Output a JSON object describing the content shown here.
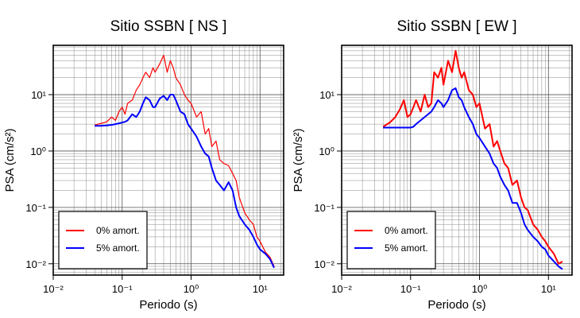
{
  "chart_data": [
    {
      "type": "line",
      "title": "Sitio SSBN [ NS ]",
      "xlabel": "Periodo (s)",
      "ylabel": "PSA (cm/s²)",
      "xscale": "log",
      "yscale": "log",
      "grid": true,
      "legend": "lower left",
      "xlim": [
        0.01,
        22
      ],
      "ylim": [
        0.0063,
        75
      ],
      "xticks": [
        {
          "value": 0.01,
          "label": "10⁻²"
        },
        {
          "value": 0.1,
          "label": "10⁻¹"
        },
        {
          "value": 1,
          "label": "10⁰"
        },
        {
          "value": 10,
          "label": "10¹"
        }
      ],
      "yticks": [
        {
          "value": 0.01,
          "label": "10⁻²"
        },
        {
          "value": 0.1,
          "label": "10⁻¹"
        },
        {
          "value": 1,
          "label": "10⁰"
        },
        {
          "value": 10,
          "label": "10¹"
        }
      ],
      "x": [
        0.04,
        0.05,
        0.06,
        0.07,
        0.08,
        0.09,
        0.1,
        0.11,
        0.12,
        0.14,
        0.16,
        0.18,
        0.2,
        0.22,
        0.25,
        0.28,
        0.3,
        0.35,
        0.4,
        0.45,
        0.5,
        0.55,
        0.6,
        0.7,
        0.8,
        0.9,
        1.0,
        1.2,
        1.4,
        1.6,
        1.8,
        2.0,
        2.3,
        2.6,
        3.0,
        3.5,
        4.0,
        4.5,
        5,
        6,
        7,
        8,
        9,
        10,
        12,
        14,
        16
      ],
      "series": [
        {
          "name": "0% amort.",
          "color": "#ff0000",
          "width": 1.2,
          "values": [
            2.9,
            3.1,
            3.3,
            4,
            3.5,
            5,
            6,
            4.5,
            7,
            8,
            12,
            15,
            20,
            25,
            20,
            30,
            25,
            35,
            50,
            25,
            40,
            30,
            20,
            15,
            10,
            8,
            7,
            4,
            5,
            2,
            2.5,
            1.2,
            1.5,
            0.7,
            0.6,
            0.55,
            0.4,
            0.3,
            0.15,
            0.08,
            0.06,
            0.05,
            0.03,
            0.025,
            0.016,
            0.013,
            0.009
          ]
        },
        {
          "name": "5% amort.",
          "color": "#0000ff",
          "width": 2,
          "values": [
            2.8,
            2.8,
            2.85,
            2.9,
            3,
            3.1,
            3.2,
            3.3,
            3.5,
            4.5,
            4,
            5,
            7,
            9,
            8,
            6,
            6,
            8.5,
            9.5,
            8,
            10,
            10,
            8,
            5,
            4.5,
            3,
            2.5,
            1.8,
            1.2,
            0.9,
            0.8,
            0.5,
            0.3,
            0.25,
            0.2,
            0.28,
            0.2,
            0.1,
            0.07,
            0.05,
            0.04,
            0.03,
            0.022,
            0.018,
            0.015,
            0.012,
            0.0085
          ]
        }
      ]
    },
    {
      "type": "line",
      "title": "Sitio SSBN [ EW ]",
      "xlabel": "Periodo (s)",
      "ylabel": "PSA (cm/s²)",
      "xscale": "log",
      "yscale": "log",
      "grid": true,
      "legend": "lower left",
      "xlim": [
        0.01,
        22
      ],
      "ylim": [
        0.0063,
        75
      ],
      "xticks": [
        {
          "value": 0.01,
          "label": "10⁻²"
        },
        {
          "value": 0.1,
          "label": "10⁻¹"
        },
        {
          "value": 1,
          "label": "10⁰"
        },
        {
          "value": 10,
          "label": "10¹"
        }
      ],
      "yticks": [
        {
          "value": 0.01,
          "label": "10⁻²"
        },
        {
          "value": 0.1,
          "label": "10⁻¹"
        },
        {
          "value": 1,
          "label": "10⁰"
        },
        {
          "value": 10,
          "label": "10¹"
        }
      ],
      "x": [
        0.04,
        0.05,
        0.06,
        0.07,
        0.08,
        0.09,
        0.1,
        0.11,
        0.12,
        0.14,
        0.16,
        0.18,
        0.2,
        0.22,
        0.25,
        0.28,
        0.3,
        0.35,
        0.4,
        0.45,
        0.5,
        0.55,
        0.6,
        0.7,
        0.8,
        0.9,
        1.0,
        1.2,
        1.4,
        1.6,
        1.8,
        2.0,
        2.3,
        2.6,
        3.0,
        3.5,
        4.0,
        4.5,
        5,
        6,
        7,
        8,
        9,
        10,
        12,
        14,
        16
      ],
      "series": [
        {
          "name": "0% amort.",
          "color": "#ff0000",
          "width": 2,
          "values": [
            2.7,
            3.2,
            4,
            5.5,
            8,
            4,
            4.5,
            6,
            8,
            5,
            10,
            6,
            7,
            25,
            20,
            30,
            15,
            40,
            25,
            60,
            30,
            20,
            25,
            12,
            10,
            6,
            7,
            2.5,
            3,
            1.2,
            1.5,
            1.0,
            0.6,
            0.5,
            0.25,
            0.3,
            0.15,
            0.1,
            0.09,
            0.05,
            0.04,
            0.03,
            0.025,
            0.02,
            0.015,
            0.01,
            0.011
          ]
        },
        {
          "name": "5% amort.",
          "color": "#0000ff",
          "width": 2,
          "values": [
            2.6,
            2.6,
            2.6,
            2.6,
            2.6,
            2.6,
            2.6,
            2.7,
            3,
            3.5,
            4,
            4.5,
            5,
            6,
            8,
            7,
            6,
            8,
            12,
            13,
            9,
            8,
            6,
            4,
            3,
            2,
            1.7,
            1.2,
            0.9,
            0.6,
            0.5,
            0.35,
            0.25,
            0.2,
            0.12,
            0.12,
            0.08,
            0.05,
            0.04,
            0.03,
            0.025,
            0.02,
            0.018,
            0.014,
            0.011,
            0.009,
            0.008
          ]
        }
      ]
    }
  ]
}
